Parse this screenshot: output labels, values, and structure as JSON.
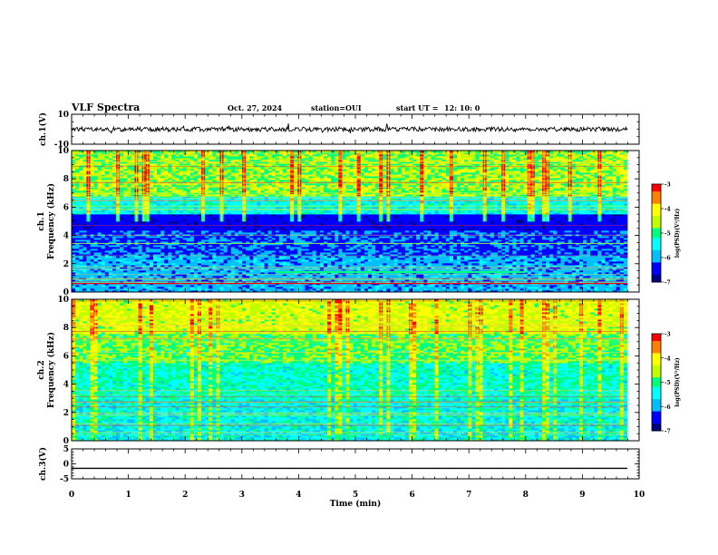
{
  "header": {
    "title": "VLF Spectra",
    "date": "Oct. 27, 2024",
    "station": "station=OUI",
    "start_label": "start  UT =",
    "start_value": "12: 10: 0"
  },
  "colors": {
    "frame": "#000000",
    "colormap": [
      "#000080",
      "#0000ff",
      "#00bfff",
      "#00ffff",
      "#00ff7f",
      "#bfff00",
      "#ffff00",
      "#ff8000",
      "#ff0000"
    ]
  },
  "chart_data": [
    {
      "type": "line",
      "panel": "ch1-waveform",
      "ylabel": "ch.1(V)",
      "ylim": [
        -10,
        10
      ],
      "y_ticks": [
        "10",
        "-10"
      ],
      "xlim": [
        0,
        10
      ],
      "series": [
        {
          "values_description_level_V": 0,
          "noise_amplitude_V": 1.5
        }
      ]
    },
    {
      "type": "heatmap",
      "panel": "ch1-spectrogram",
      "ylabel": "Frequency (kHz)",
      "channel_label": "ch.1",
      "ylim": [
        0,
        10
      ],
      "y_ticks": [
        "0",
        "2",
        "4",
        "6",
        "8",
        "10"
      ],
      "xlim": [
        0,
        9.8
      ],
      "colorbar": {
        "label": "log(PSD)(V²/Hz)",
        "range": [
          -7,
          -3
        ],
        "ticks": [
          "-3",
          "-4",
          "-5",
          "-6",
          "-7"
        ]
      },
      "notable_features": [
        {
          "t": [
            3.6,
            8.0
          ],
          "freq_kHz": 1.4,
          "note": "persistent green band"
        },
        {
          "t": [
            0,
            9.8
          ],
          "freq_kHz": 0.6,
          "note": "red narrowband line"
        }
      ]
    },
    {
      "type": "heatmap",
      "panel": "ch2-spectrogram",
      "ylabel": "Frequency (kHz)",
      "channel_label": "ch.2",
      "ylim": [
        0,
        10
      ],
      "y_ticks": [
        "0",
        "2",
        "4",
        "6",
        "8",
        "10"
      ],
      "xlim": [
        0,
        9.8
      ],
      "colorbar": {
        "label": "log(PSD)(V²/Hz)",
        "range": [
          -7,
          -3
        ],
        "ticks": [
          "-3",
          "-4",
          "-5",
          "-6",
          "-7"
        ]
      }
    },
    {
      "type": "line",
      "panel": "ch3-waveform",
      "ylabel": "ch.3(V)",
      "ylim": [
        -5,
        5
      ],
      "y_ticks": [
        "5",
        "0",
        "-5"
      ],
      "xlim": [
        0,
        10
      ],
      "series": [
        {
          "level_V": -1.5
        }
      ]
    }
  ],
  "axes": {
    "x_ticks": [
      "0",
      "1",
      "2",
      "3",
      "4",
      "5",
      "6",
      "7",
      "8",
      "9",
      "10"
    ],
    "xlabel": "Time (min)"
  }
}
